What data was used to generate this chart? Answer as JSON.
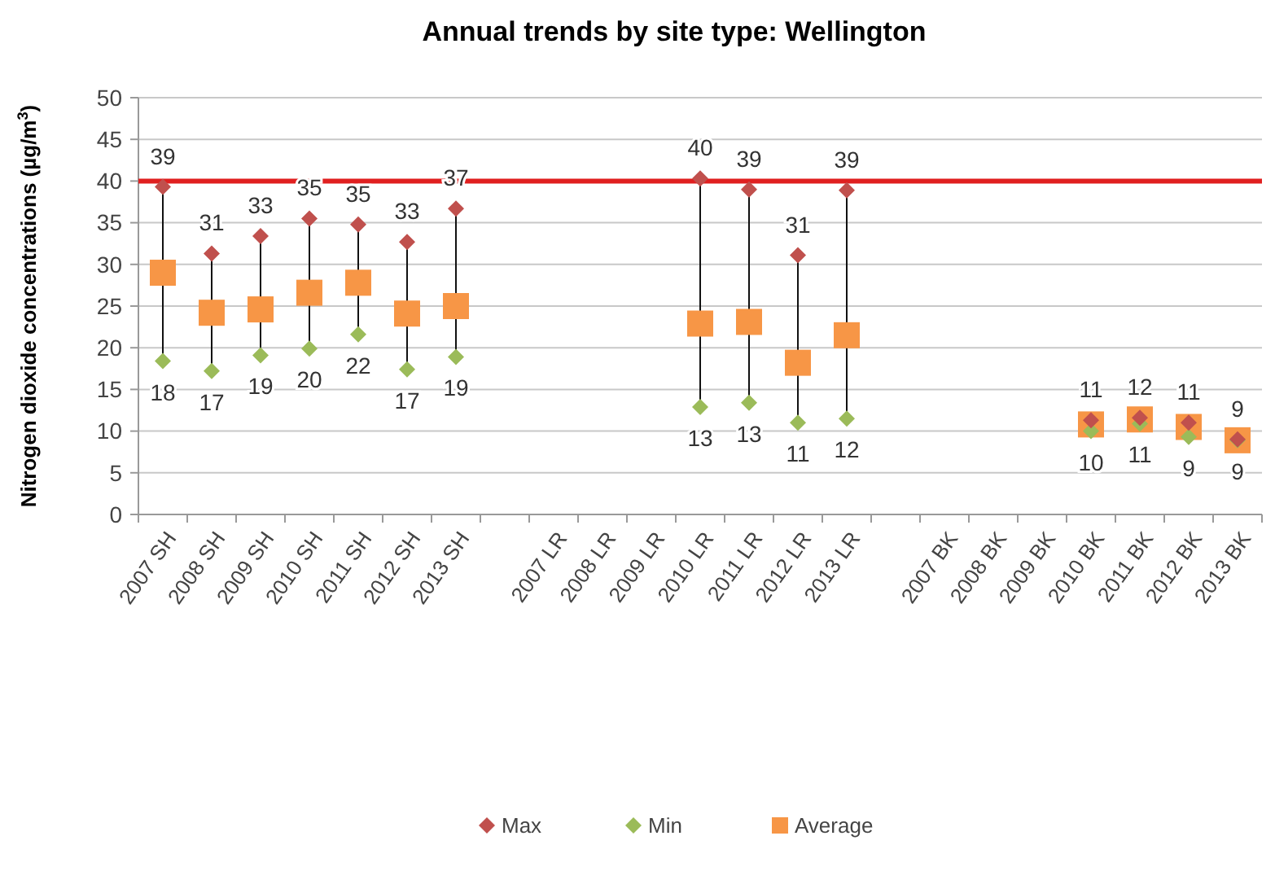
{
  "chart_data": {
    "type": "scatter",
    "title": "Annual trends by site type: Wellington",
    "ylabel": "Nitrogen dioxide concentrations (µg/m$^{3}$)",
    "categories": [
      "2007 SH",
      "2008 SH",
      "2009 SH",
      "2010 SH",
      "2011 SH",
      "2012 SH",
      "2013 SH",
      null,
      "2007 LR",
      "2008 LR",
      "2009 LR",
      "2010 LR",
      "2011 LR",
      "2012 LR",
      "2013 LR",
      null,
      "2007 BK",
      "2008 BK",
      "2009 BK",
      "2010 BK",
      "2011 BK",
      "2012 BK",
      "2013 BK"
    ],
    "series": [
      {
        "name": "Max",
        "color": "#c0504d",
        "marker": "diamond",
        "values": [
          39.3,
          31.3,
          33.4,
          35.5,
          34.8,
          32.7,
          36.7,
          null,
          null,
          null,
          null,
          40.3,
          39.0,
          31.1,
          38.9,
          null,
          null,
          null,
          null,
          11.3,
          11.6,
          11.0,
          9.0
        ],
        "value_labels": [
          "39",
          "31",
          "33",
          "35",
          "35",
          "33",
          "37",
          null,
          null,
          null,
          null,
          "40",
          "39",
          "31",
          "39",
          null,
          null,
          null,
          null,
          "11",
          "12",
          "11",
          "9"
        ]
      },
      {
        "name": "Min",
        "color": "#9bbb59",
        "marker": "diamond",
        "values": [
          18.4,
          17.2,
          19.1,
          19.9,
          21.6,
          17.4,
          18.9,
          null,
          null,
          null,
          null,
          12.9,
          13.4,
          11.0,
          11.5,
          null,
          null,
          null,
          null,
          10.0,
          10.9,
          9.3,
          8.9
        ],
        "value_labels": [
          "18",
          "17",
          "19",
          "20",
          "22",
          "17",
          "19",
          null,
          null,
          null,
          null,
          "13",
          "13",
          "11",
          "12",
          null,
          null,
          null,
          null,
          "10",
          "11",
          "9",
          "9"
        ]
      },
      {
        "name": "Average",
        "color": "#f79646",
        "marker": "square",
        "values": [
          29.0,
          24.2,
          24.6,
          26.6,
          27.8,
          24.1,
          25.0,
          null,
          null,
          null,
          null,
          22.9,
          23.1,
          18.2,
          21.5,
          null,
          null,
          null,
          null,
          10.8,
          11.4,
          10.5,
          8.9
        ]
      }
    ],
    "ylim": [
      0,
      50
    ],
    "yticks": [
      0,
      5,
      10,
      15,
      20,
      25,
      30,
      35,
      40,
      45,
      50
    ],
    "grid": "y",
    "legend": "bottom",
    "ref_lines": [
      {
        "axis": "y",
        "value": 40,
        "color": "#e02020"
      }
    ]
  }
}
